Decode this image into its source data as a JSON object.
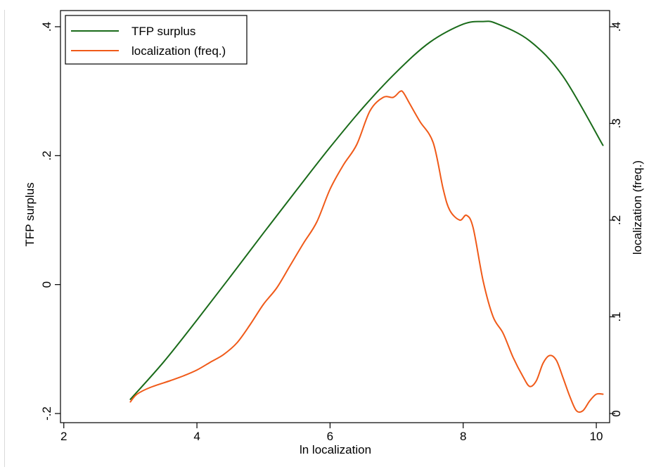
{
  "chart_data": {
    "type": "line",
    "title": "",
    "xlabel": "ln localization",
    "ylabel_left": "TFP surplus",
    "ylabel_right": "localization (freq.)",
    "xlim": [
      1.95,
      10.2
    ],
    "ylim_left": [
      -0.2,
      0.4
    ],
    "ylim_right": [
      0,
      0.4
    ],
    "x_ticks": [
      2,
      4,
      6,
      8,
      10
    ],
    "x_tick_labels": [
      "2",
      "4",
      "6",
      "8",
      "10"
    ],
    "y_left_ticks": [
      -0.2,
      0,
      0.2,
      0.4
    ],
    "y_left_tick_labels": [
      "-.2",
      "0",
      ".2",
      ".4"
    ],
    "y_right_ticks": [
      0,
      0.1,
      0.2,
      0.3,
      0.4
    ],
    "y_right_tick_labels": [
      "0",
      ".1",
      ".2",
      ".3",
      ".4"
    ],
    "legend_position": "top-left",
    "grid": false,
    "series": [
      {
        "name": "TFP surplus",
        "axis": "left",
        "color": "#1a6b1a",
        "x": [
          3.0,
          3.5,
          4.0,
          4.5,
          5.0,
          5.5,
          6.0,
          6.5,
          7.0,
          7.5,
          8.0,
          8.3,
          8.5,
          9.0,
          9.5,
          10.1
        ],
        "y": [
          -0.178,
          -0.12,
          -0.055,
          0.012,
          0.08,
          0.147,
          0.213,
          0.275,
          0.33,
          0.376,
          0.404,
          0.408,
          0.405,
          0.378,
          0.323,
          0.216
        ]
      },
      {
        "name": "localization (freq.)",
        "axis": "right",
        "color": "#f05a19",
        "x": [
          3.0,
          3.1,
          3.3,
          3.6,
          3.8,
          4.0,
          4.2,
          4.4,
          4.6,
          4.8,
          5.0,
          5.2,
          5.4,
          5.6,
          5.8,
          6.0,
          6.2,
          6.4,
          6.6,
          6.8,
          6.95,
          7.05,
          7.1,
          7.2,
          7.35,
          7.55,
          7.7,
          7.8,
          7.95,
          8.05,
          8.15,
          8.3,
          8.45,
          8.6,
          8.75,
          8.9,
          9.0,
          9.1,
          9.2,
          9.3,
          9.4,
          9.5,
          9.6,
          9.7,
          9.8,
          9.9,
          10.0,
          10.1
        ],
        "y": [
          0.012,
          0.02,
          0.027,
          0.034,
          0.039,
          0.045,
          0.053,
          0.061,
          0.073,
          0.092,
          0.113,
          0.13,
          0.153,
          0.176,
          0.198,
          0.232,
          0.257,
          0.278,
          0.313,
          0.327,
          0.327,
          0.333,
          0.332,
          0.32,
          0.302,
          0.28,
          0.232,
          0.21,
          0.2,
          0.205,
          0.192,
          0.137,
          0.1,
          0.083,
          0.058,
          0.038,
          0.028,
          0.034,
          0.052,
          0.06,
          0.055,
          0.037,
          0.018,
          0.003,
          0.003,
          0.013,
          0.02,
          0.02
        ]
      }
    ]
  }
}
